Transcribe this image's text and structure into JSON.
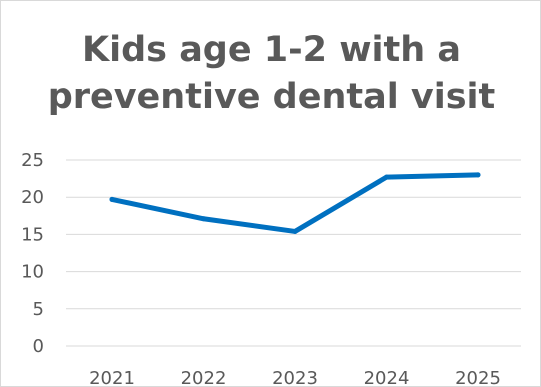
{
  "chart_data": {
    "type": "line",
    "title": "Kids age 1-2 with a\npreventive dental visit",
    "categories": [
      "2021",
      "2022",
      "2023",
      "2024",
      "2025"
    ],
    "series": [
      {
        "values": [
          19.7,
          17.1,
          15.4,
          22.7,
          23.0
        ]
      }
    ],
    "y_ticks": [
      "0",
      "5",
      "10",
      "15",
      "20",
      "25"
    ],
    "ylim": [
      0,
      25
    ],
    "grid": true,
    "legend": "none",
    "line_color": "#0070c0",
    "grid_color": "#d9d9d9",
    "text_color": "#595959"
  }
}
